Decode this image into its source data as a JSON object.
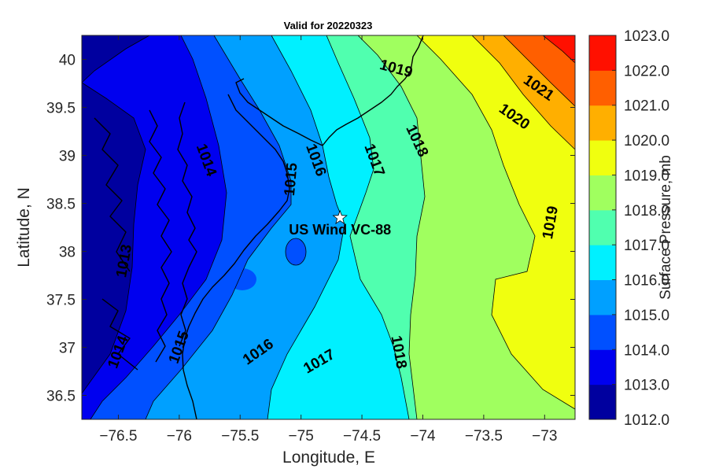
{
  "chart_data": {
    "type": "contour",
    "title": "Valid for 20220323",
    "xlabel": "Longitude, E",
    "ylabel": "Latitude, N",
    "xlim": [
      -76.8,
      -72.75
    ],
    "ylim": [
      36.25,
      40.25
    ],
    "xticks": [
      -76.5,
      -76,
      -75.5,
      -75,
      -74.5,
      -74,
      -73.5,
      -73
    ],
    "xtick_labels": [
      "−76.5",
      "−76",
      "−75.5",
      "−75",
      "−74.5",
      "−74",
      "−73.5",
      "−73"
    ],
    "yticks": [
      36.5,
      37,
      37.5,
      38,
      38.5,
      39,
      39.5,
      40
    ],
    "ytick_labels": [
      "36.5",
      "37",
      "37.5",
      "38",
      "38.5",
      "39",
      "39.5",
      "40"
    ],
    "grid": false,
    "colorbar": {
      "title": "Surface Pressure, mb",
      "levels": [
        1012,
        1013,
        1014,
        1015,
        1016,
        1017,
        1018,
        1019,
        1020,
        1021,
        1022,
        1023
      ],
      "level_labels": [
        "1012.0",
        "1013.0",
        "1014.0",
        "1015.0",
        "1016.0",
        "1017.0",
        "1018.0",
        "1019.0",
        "1020.0",
        "1021.0",
        "1022.0",
        "1023.0"
      ],
      "colors": [
        "#00009f",
        "#0000ef",
        "#0050ff",
        "#00a0ff",
        "#00f0ff",
        "#50ffaf",
        "#a0ff5f",
        "#f0ff0f",
        "#ffaf00",
        "#ff5f00",
        "#ff1000"
      ]
    },
    "contour_labels": [
      {
        "text": "1013",
        "lon": -76.45,
        "lat": 37.9,
        "angle": -80
      },
      {
        "text": "1014",
        "lon": -76.5,
        "lat": 36.95,
        "angle": -70
      },
      {
        "text": "1014",
        "lon": -75.78,
        "lat": 38.95,
        "angle": 70
      },
      {
        "text": "1015",
        "lon": -76.0,
        "lat": 37.0,
        "angle": -70
      },
      {
        "text": "1015",
        "lon": -75.08,
        "lat": 38.75,
        "angle": -85
      },
      {
        "text": "1016",
        "lon": -75.35,
        "lat": 36.95,
        "angle": -35
      },
      {
        "text": "1016",
        "lon": -74.88,
        "lat": 38.95,
        "angle": 70
      },
      {
        "text": "1017",
        "lon": -74.85,
        "lat": 36.85,
        "angle": -30
      },
      {
        "text": "1017",
        "lon": -74.4,
        "lat": 38.95,
        "angle": 70
      },
      {
        "text": "1018",
        "lon": -74.2,
        "lat": 36.95,
        "angle": 80
      },
      {
        "text": "1018",
        "lon": -74.05,
        "lat": 39.15,
        "angle": 65
      },
      {
        "text": "1019",
        "lon": -74.22,
        "lat": 39.9,
        "angle": 15
      },
      {
        "text": "1019",
        "lon": -72.95,
        "lat": 38.3,
        "angle": -80
      },
      {
        "text": "1020",
        "lon": -73.25,
        "lat": 39.4,
        "angle": 35
      },
      {
        "text": "1021",
        "lon": -73.05,
        "lat": 39.7,
        "angle": 35
      }
    ],
    "annotations": [
      {
        "text": "US Wind VC-88",
        "lon": -74.68,
        "lat": 38.35,
        "marker": "white-star"
      }
    ]
  }
}
